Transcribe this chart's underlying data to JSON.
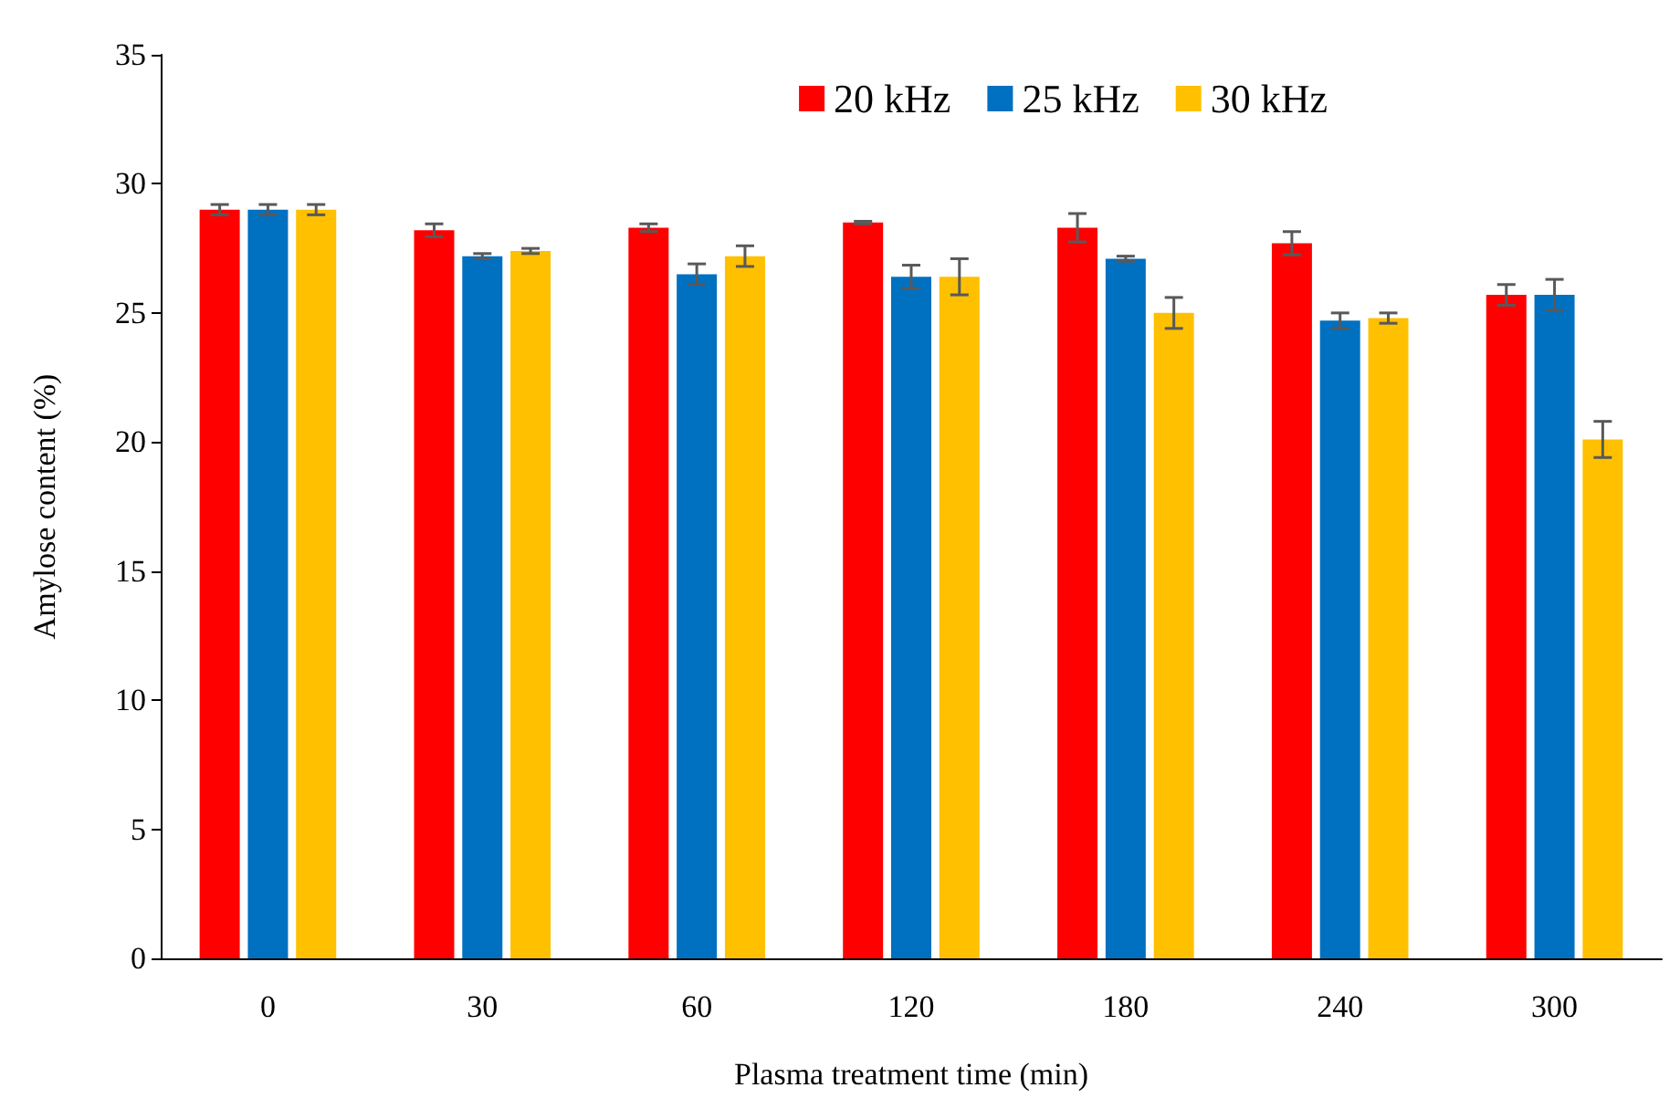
{
  "chart_data": {
    "type": "bar",
    "xlabel": "Plasma treatment time (min)",
    "ylabel": "Amylose content (%)",
    "categories": [
      "0",
      "30",
      "60",
      "120",
      "180",
      "240",
      "300"
    ],
    "series": [
      {
        "name": "20 kHz",
        "color": "#ff0000",
        "values": [
          29.0,
          28.2,
          28.3,
          28.5,
          28.3,
          27.7,
          25.7
        ],
        "errors": [
          0.2,
          0.25,
          0.15,
          0.05,
          0.55,
          0.45,
          0.4
        ]
      },
      {
        "name": "25 kHz",
        "color": "#0070c0",
        "values": [
          29.0,
          27.2,
          26.5,
          26.4,
          27.1,
          24.7,
          25.7
        ],
        "errors": [
          0.2,
          0.1,
          0.4,
          0.45,
          0.1,
          0.3,
          0.6
        ]
      },
      {
        "name": "30 kHz",
        "color": "#ffc000",
        "values": [
          29.0,
          27.4,
          27.2,
          26.4,
          25.0,
          24.8,
          20.1
        ],
        "errors": [
          0.2,
          0.1,
          0.4,
          0.7,
          0.6,
          0.2,
          0.7
        ]
      }
    ],
    "ylim": [
      0,
      35
    ],
    "yticks": [
      0,
      5,
      10,
      15,
      20,
      25,
      30,
      35
    ],
    "grid": false,
    "legend": "top right"
  }
}
